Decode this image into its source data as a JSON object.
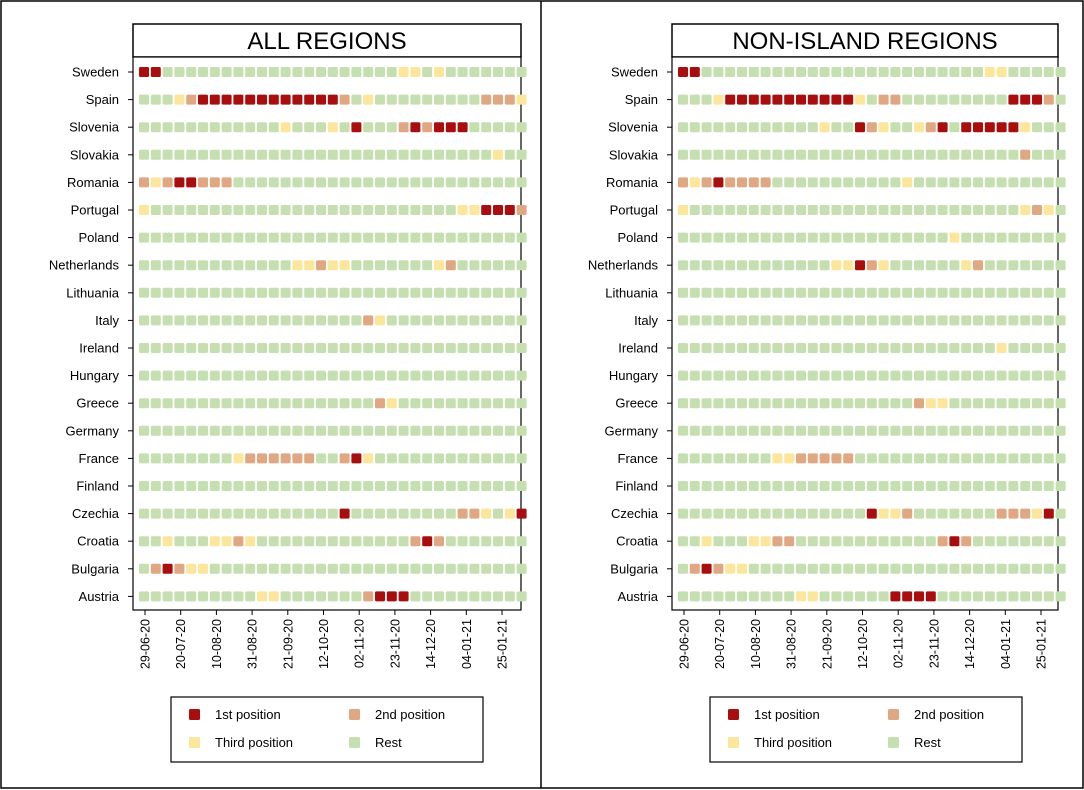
{
  "colors": {
    "first": "#a80e0e",
    "second": "#e0a882",
    "third": "#fbe69c",
    "rest": "#c6dfb0",
    "border": "#000000"
  },
  "chart_data": [
    {
      "type": "heatmap",
      "title": "ALL REGIONS",
      "categories": [
        "Sweden",
        "Spain",
        "Slovenia",
        "Slovakia",
        "Romania",
        "Portugal",
        "Poland",
        "Netherlands",
        "Lithuania",
        "Italy",
        "Ireland",
        "Hungary",
        "Greece",
        "Germany",
        "France",
        "Finland",
        "Czechia",
        "Croatia",
        "Bulgaria",
        "Austria"
      ],
      "x_ticks": [
        "29-06-20",
        "20-07-20",
        "10-08-20",
        "31-08-20",
        "21-09-20",
        "12-10-20",
        "02-11-20",
        "23-11-20",
        "14-12-20",
        "04-01-21",
        "25-01-21"
      ],
      "weeks": 33,
      "legend": [
        "1st position",
        "2nd position",
        "Third position",
        "Rest"
      ],
      "rows": {
        "Sweden": {
          "1": [
            0,
            1
          ],
          "2": [],
          "3": [
            22,
            23,
            25
          ]
        },
        "Spain": {
          "1": [
            5,
            6,
            7,
            8,
            9,
            10,
            11,
            12,
            13,
            14,
            15,
            16
          ],
          "2": [
            4,
            17,
            29,
            30,
            31
          ],
          "3": [
            3,
            19,
            32
          ]
        },
        "Slovenia": {
          "1": [
            18,
            23,
            25,
            26,
            27
          ],
          "2": [
            22,
            24
          ],
          "3": [
            12,
            16
          ]
        },
        "Slovakia": {
          "1": [],
          "2": [],
          "3": [
            30
          ]
        },
        "Romania": {
          "1": [
            3,
            4
          ],
          "2": [
            0,
            2,
            5,
            6,
            7
          ],
          "3": [
            1
          ]
        },
        "Portugal": {
          "1": [
            29,
            30,
            31
          ],
          "2": [
            32
          ],
          "3": [
            0,
            27,
            28
          ]
        },
        "Poland": {
          "1": [],
          "2": [],
          "3": []
        },
        "Netherlands": {
          "1": [],
          "2": [
            15,
            26
          ],
          "3": [
            13,
            14,
            16,
            17,
            25
          ]
        },
        "Lithuania": {
          "1": [],
          "2": [],
          "3": []
        },
        "Italy": {
          "1": [],
          "2": [
            19
          ],
          "3": [
            20
          ]
        },
        "Ireland": {
          "1": [],
          "2": [],
          "3": []
        },
        "Hungary": {
          "1": [],
          "2": [],
          "3": []
        },
        "Greece": {
          "1": [],
          "2": [
            20
          ],
          "3": [
            21
          ]
        },
        "Germany": {
          "1": [],
          "2": [],
          "3": []
        },
        "France": {
          "1": [
            18
          ],
          "2": [
            9,
            10,
            11,
            12,
            13,
            14,
            17
          ],
          "3": [
            8,
            19
          ]
        },
        "Finland": {
          "1": [],
          "2": [],
          "3": []
        },
        "Czechia": {
          "1": [
            17,
            32
          ],
          "2": [
            27,
            28
          ],
          "3": [
            29,
            31
          ]
        },
        "Croatia": {
          "1": [
            24
          ],
          "2": [
            8,
            23,
            25
          ],
          "3": [
            2,
            6,
            7,
            9
          ]
        },
        "Bulgaria": {
          "1": [
            2
          ],
          "2": [
            1,
            3
          ],
          "3": [
            4,
            5
          ]
        },
        "Austria": {
          "1": [
            20,
            21,
            22
          ],
          "2": [
            19
          ],
          "3": [
            10,
            11
          ]
        }
      }
    },
    {
      "type": "heatmap",
      "title": "NON-ISLAND REGIONS",
      "categories": [
        "Sweden",
        "Spain",
        "Slovenia",
        "Slovakia",
        "Romania",
        "Portugal",
        "Poland",
        "Netherlands",
        "Lithuania",
        "Italy",
        "Ireland",
        "Hungary",
        "Greece",
        "Germany",
        "France",
        "Finland",
        "Czechia",
        "Croatia",
        "Bulgaria",
        "Austria"
      ],
      "x_ticks": [
        "29-06-20",
        "20-07-20",
        "10-08-20",
        "31-08-20",
        "21-09-20",
        "12-10-20",
        "02-11-20",
        "23-11-20",
        "14-12-20",
        "04-01-21",
        "25-01-21"
      ],
      "weeks": 33,
      "legend": [
        "1st position",
        "2nd position",
        "Third position",
        "Rest"
      ],
      "rows": {
        "Sweden": {
          "1": [
            0,
            1
          ],
          "2": [],
          "3": [
            26,
            27
          ]
        },
        "Spain": {
          "1": [
            4,
            5,
            6,
            7,
            8,
            9,
            10,
            11,
            12,
            13,
            14,
            28,
            29,
            30
          ],
          "2": [
            17,
            18,
            31
          ],
          "3": [
            3,
            15
          ]
        },
        "Slovenia": {
          "1": [
            15,
            22,
            24,
            25,
            26,
            27,
            28
          ],
          "2": [
            16,
            21
          ],
          "3": [
            12,
            17,
            20,
            29
          ]
        },
        "Slovakia": {
          "1": [],
          "2": [
            29
          ],
          "3": []
        },
        "Romania": {
          "1": [
            3
          ],
          "2": [
            0,
            2,
            4,
            5,
            6,
            7
          ],
          "3": [
            1,
            19
          ]
        },
        "Portugal": {
          "1": [],
          "2": [
            30
          ],
          "3": [
            0,
            29,
            31
          ]
        },
        "Poland": {
          "1": [],
          "2": [],
          "3": [
            23
          ]
        },
        "Netherlands": {
          "1": [
            15
          ],
          "2": [
            16,
            25
          ],
          "3": [
            13,
            14,
            17,
            24
          ]
        },
        "Lithuania": {
          "1": [],
          "2": [],
          "3": []
        },
        "Italy": {
          "1": [],
          "2": [],
          "3": []
        },
        "Ireland": {
          "1": [],
          "2": [],
          "3": [
            27
          ]
        },
        "Hungary": {
          "1": [],
          "2": [],
          "3": []
        },
        "Greece": {
          "1": [],
          "2": [
            20
          ],
          "3": [
            21,
            22
          ]
        },
        "Germany": {
          "1": [],
          "2": [],
          "3": []
        },
        "France": {
          "1": [],
          "2": [
            10,
            11,
            12,
            13,
            14
          ],
          "3": [
            8,
            9
          ]
        },
        "Finland": {
          "1": [],
          "2": [],
          "3": []
        },
        "Czechia": {
          "1": [
            16,
            31
          ],
          "2": [
            19,
            27,
            28,
            29
          ],
          "3": [
            17,
            18,
            30
          ]
        },
        "Croatia": {
          "1": [
            23
          ],
          "2": [
            8,
            9,
            22,
            24
          ],
          "3": [
            2,
            6,
            7
          ]
        },
        "Bulgaria": {
          "1": [
            2
          ],
          "2": [
            1,
            3
          ],
          "3": [
            4,
            5
          ]
        },
        "Austria": {
          "1": [
            18,
            19,
            20,
            21
          ],
          "2": [],
          "3": [
            10,
            11
          ]
        }
      }
    }
  ]
}
